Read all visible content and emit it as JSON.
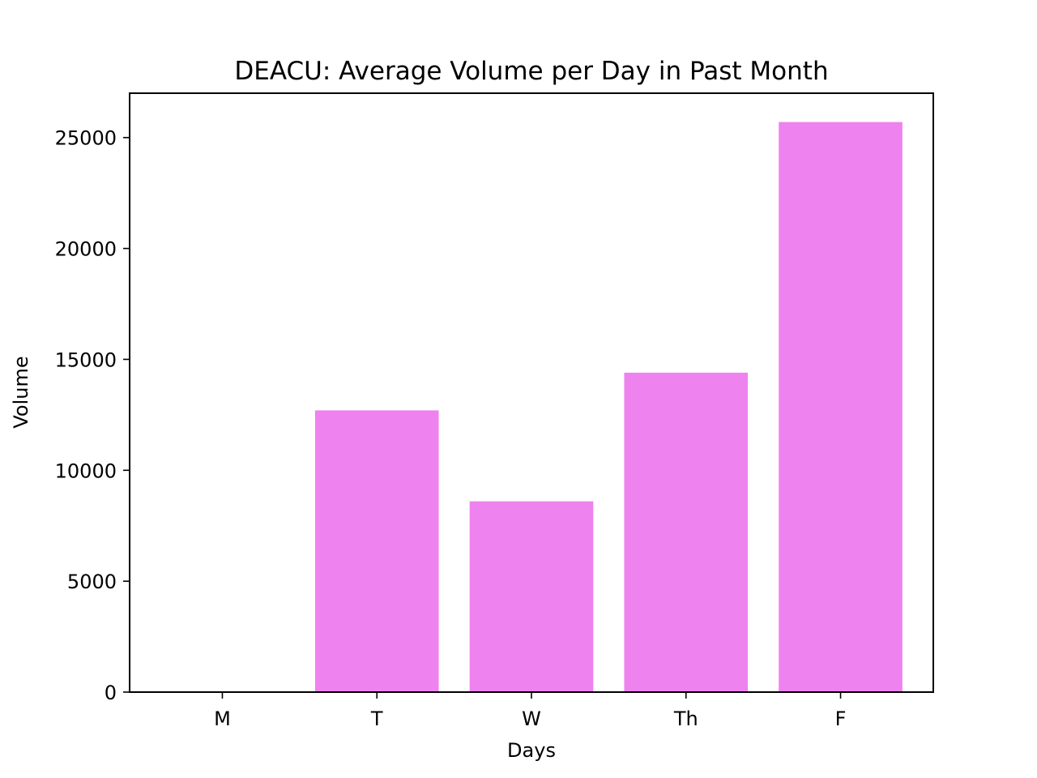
{
  "chart_data": {
    "type": "bar",
    "title": "DEACU: Average Volume per Day in Past Month",
    "xlabel": "Days",
    "ylabel": "Volume",
    "categories": [
      "M",
      "T",
      "W",
      "Th",
      "F"
    ],
    "values": [
      0,
      12700,
      8600,
      14400,
      25700
    ],
    "ylim": [
      0,
      27000
    ],
    "yticks": [
      0,
      5000,
      10000,
      15000,
      20000,
      25000
    ],
    "ytick_labels": [
      "0",
      "5000",
      "10000",
      "15000",
      "20000",
      "25000"
    ],
    "bar_color": "#ee82ee",
    "grid": false,
    "legend": "none"
  }
}
